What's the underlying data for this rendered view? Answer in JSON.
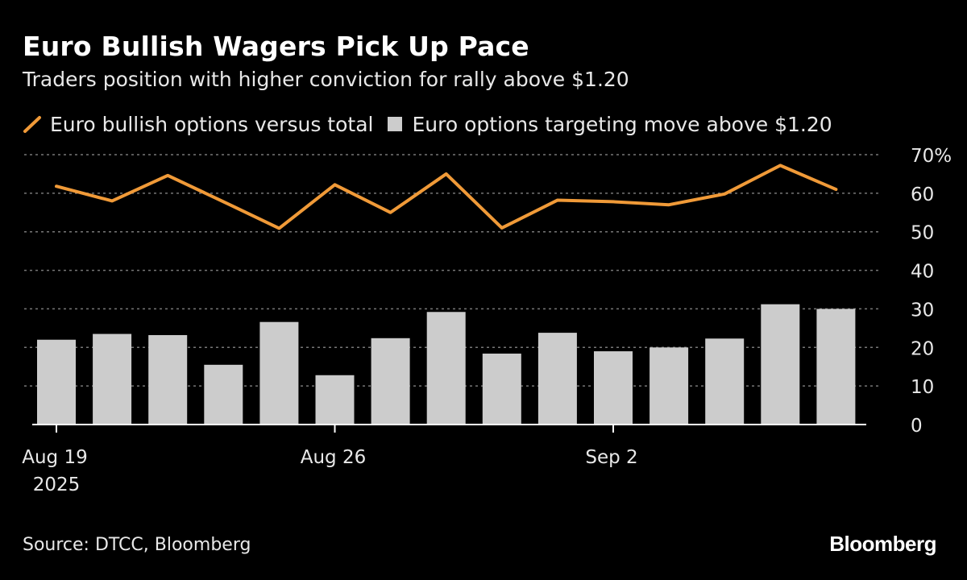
{
  "header": {
    "title": "Euro Bullish Wagers Pick Up Pace",
    "subtitle": "Traders position with higher conviction for rally above $1.20"
  },
  "legend": {
    "line_label": "Euro bullish options versus total",
    "bar_label": "Euro options targeting move above $1.20"
  },
  "footer": {
    "source": "Source: DTCC, Bloomberg",
    "brand": "Bloomberg"
  },
  "colors": {
    "line": "#f09a38",
    "bar": "#cccccc",
    "grid": "#777777",
    "axis_text": "#e8e8e8",
    "background": "#000000"
  },
  "chart_data": {
    "type": "bar",
    "title": "Euro Bullish Wagers Pick Up Pace",
    "ylim": [
      0,
      70
    ],
    "yticks": [
      0,
      10,
      20,
      30,
      40,
      50,
      60,
      70
    ],
    "ytick_labels": [
      "0",
      "10",
      "20",
      "30",
      "40",
      "50",
      "60",
      "70%"
    ],
    "xtick_labels": [
      {
        "index": 0,
        "line1": "Aug 19",
        "line2": "2025"
      },
      {
        "index": 5,
        "line1": "Aug 26",
        "line2": ""
      },
      {
        "index": 10,
        "line1": "Sep 2",
        "line2": ""
      }
    ],
    "grid": true,
    "series": [
      {
        "name": "Euro options targeting move above $1.20",
        "kind": "bar",
        "values": [
          22,
          23.5,
          23.2,
          15.5,
          26.6,
          12.8,
          22.4,
          29.2,
          18.4,
          23.8,
          19,
          20,
          22.3,
          31.2,
          30
        ]
      },
      {
        "name": "Euro bullish options versus total",
        "kind": "line",
        "values": [
          61.8,
          58,
          64.6,
          57.8,
          50.9,
          62.2,
          55,
          65,
          51,
          58.2,
          57.8,
          57,
          59.8,
          67.2,
          61
        ]
      }
    ]
  }
}
